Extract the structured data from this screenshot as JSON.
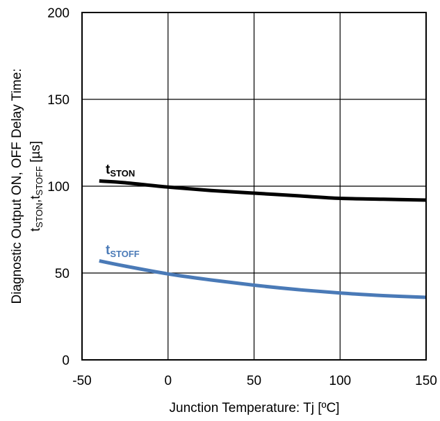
{
  "chart_data": {
    "type": "line",
    "title": "",
    "xlabel": "Junction Temperature: Tj [ºC]",
    "ylabel_line1": "Diagnostic Output ON, OFF Delay Time:",
    "ylabel_line2_parts": [
      "t",
      "STON",
      ",t",
      "STOFF",
      " [µs]"
    ],
    "xlim": [
      -50,
      150
    ],
    "ylim": [
      0,
      200
    ],
    "x_ticks": [
      "-50",
      "0",
      "50",
      "100",
      "150"
    ],
    "y_ticks": [
      "0",
      "50",
      "100",
      "150",
      "200"
    ],
    "grid": true,
    "series": [
      {
        "name": "tSTON",
        "name_main": "t",
        "name_sub": "STON",
        "color": "#000000",
        "x": [
          -40,
          -25,
          0,
          25,
          50,
          75,
          100,
          125,
          150
        ],
        "y": [
          103,
          102,
          99.5,
          97.5,
          96,
          94.5,
          93,
          92.5,
          92
        ]
      },
      {
        "name": "tSTOFF",
        "name_main": "t",
        "name_sub": "STOFF",
        "color": "#4a7ab7",
        "x": [
          -40,
          -25,
          0,
          25,
          50,
          75,
          100,
          125,
          150
        ],
        "y": [
          57,
          54,
          49.5,
          46,
          43,
          40.5,
          38.5,
          37,
          36
        ]
      }
    ]
  }
}
